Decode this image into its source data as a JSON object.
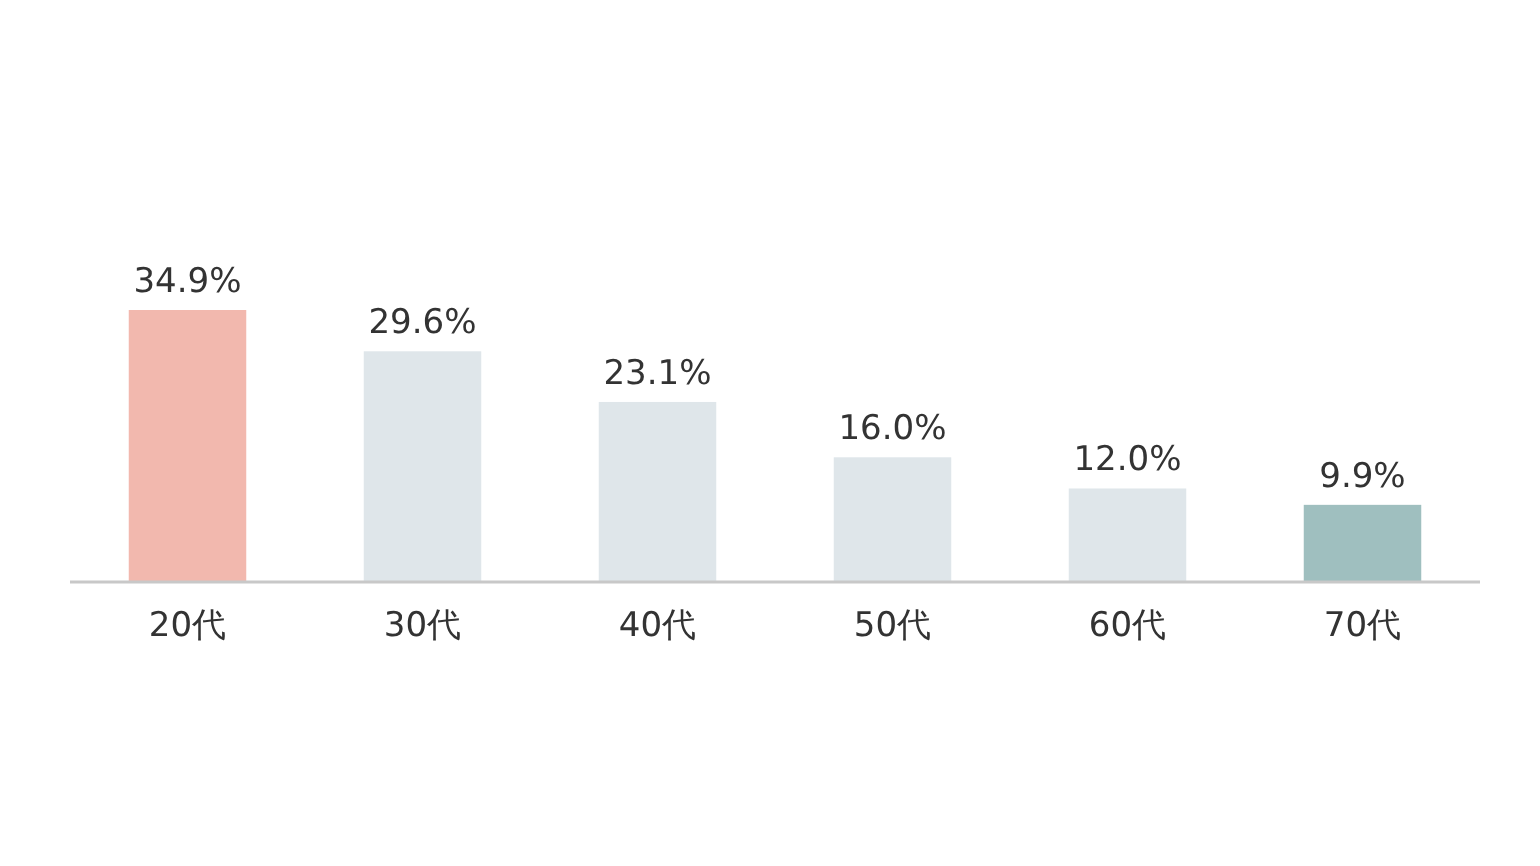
{
  "chart_data": {
    "type": "bar",
    "categories": [
      "20代",
      "30代",
      "40代",
      "50代",
      "60代",
      "70代"
    ],
    "values": [
      34.9,
      29.6,
      23.1,
      16.0,
      12.0,
      9.9
    ],
    "colors": [
      "#f2b8ae",
      "#dfe6ea",
      "#dfe6ea",
      "#dfe6ea",
      "#dfe6ea",
      "#9fbfbf"
    ],
    "value_labels": [
      "34.9%",
      "29.6%",
      "23.1%",
      "16.0%",
      "12.0%",
      "9.9%"
    ]
  }
}
